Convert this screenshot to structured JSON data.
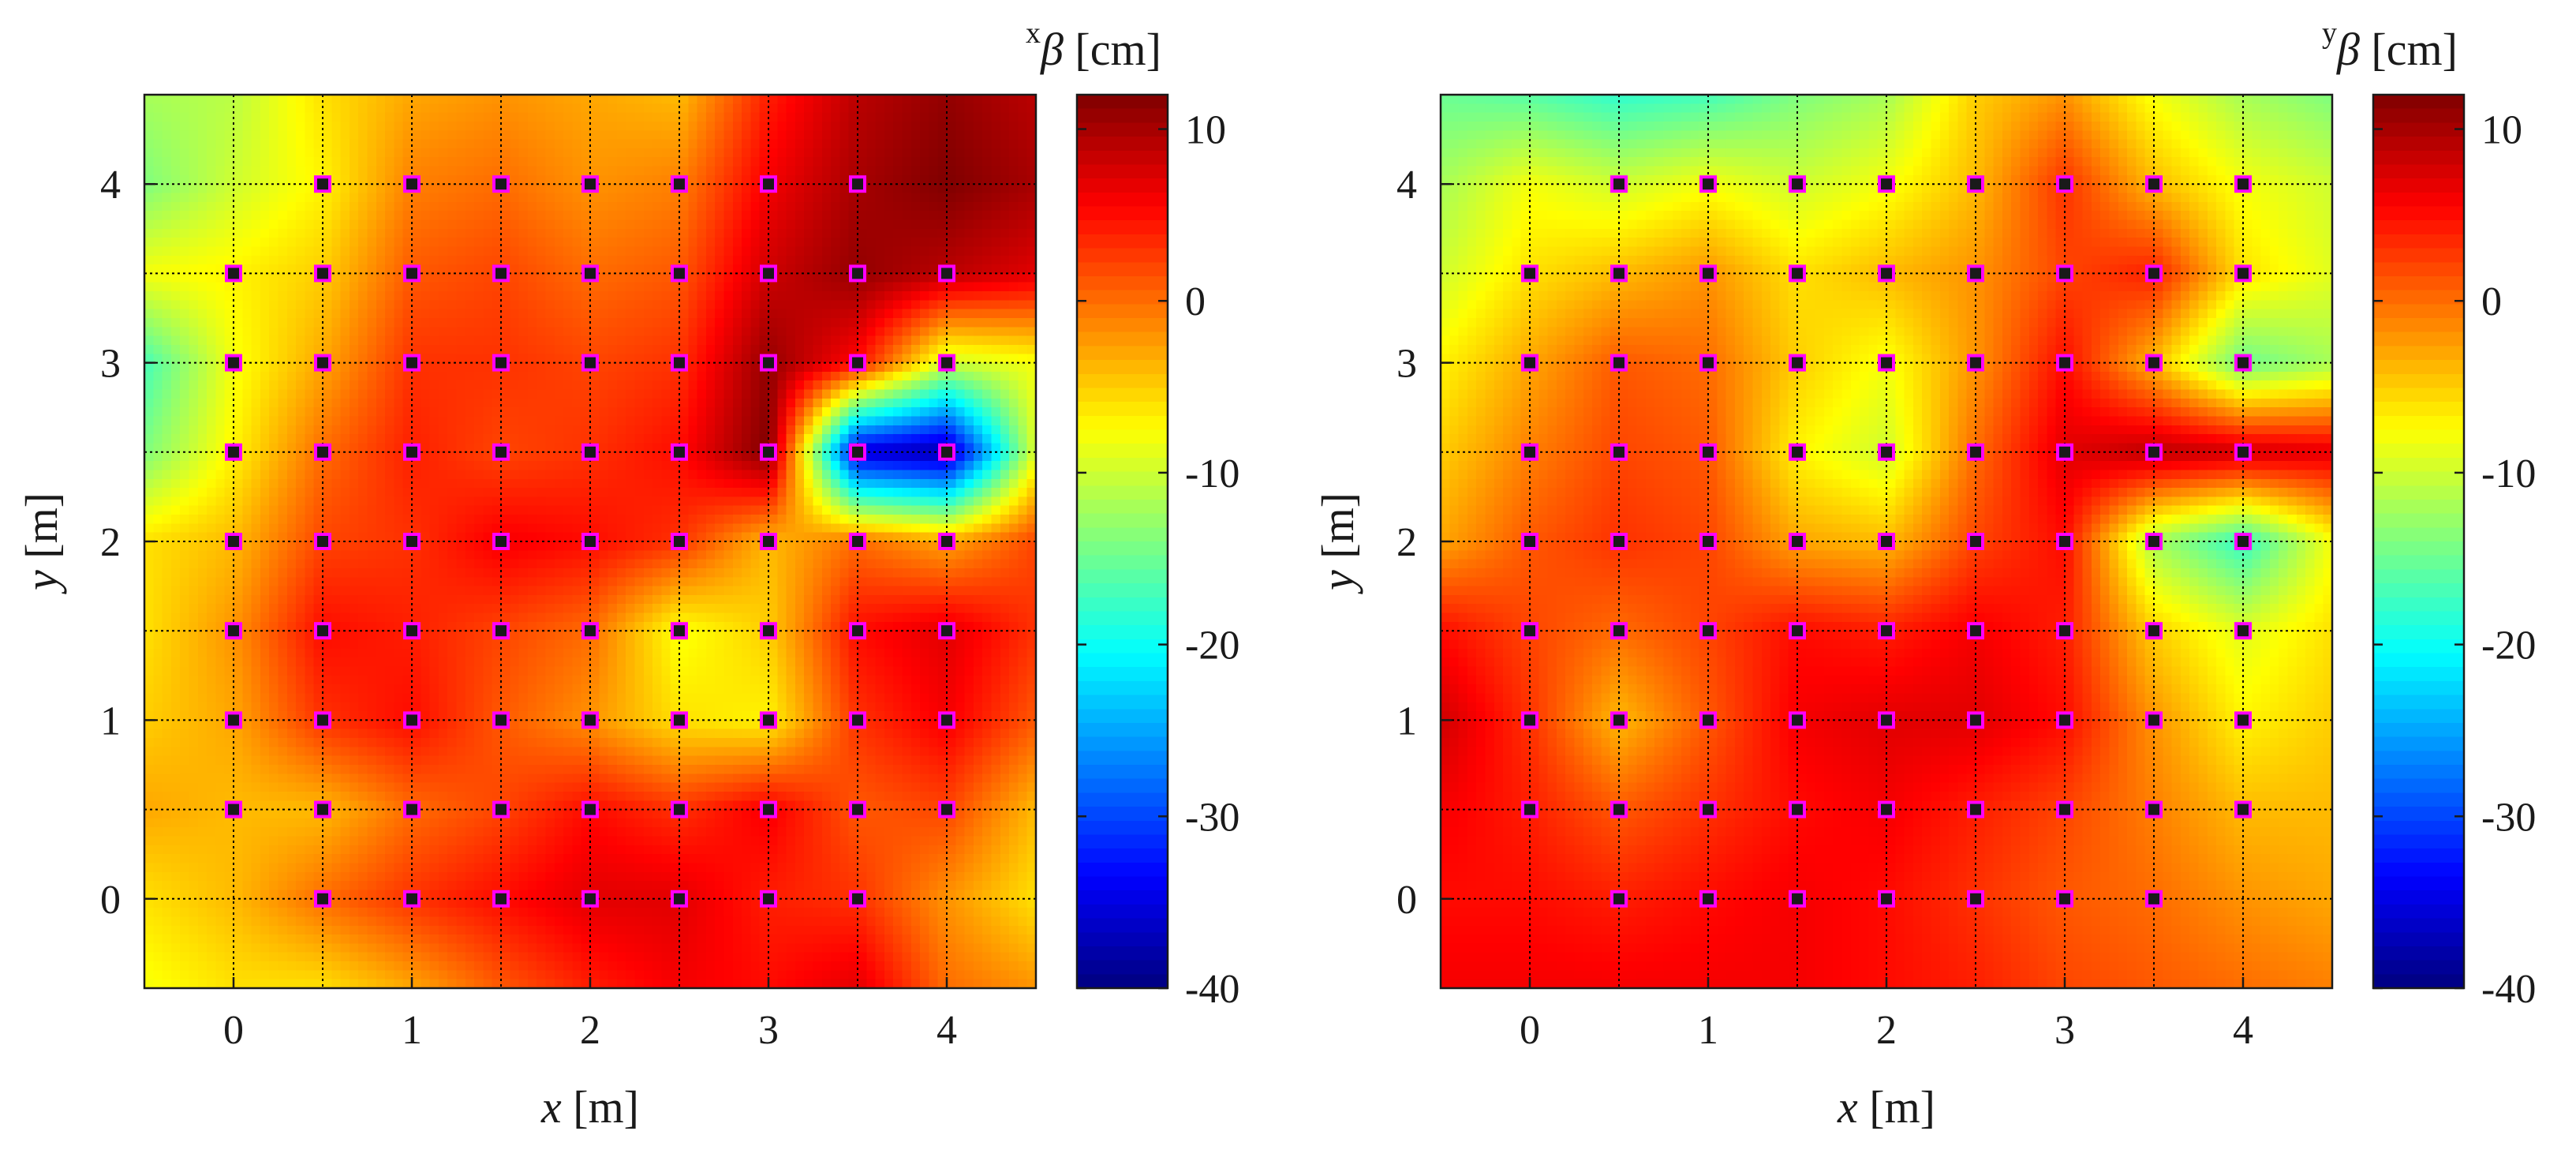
{
  "chart_data": [
    {
      "type": "heatmap",
      "title": "",
      "xlabel": "x [m]",
      "ylabel": "y [m]",
      "x_var": "x",
      "y_var": "y",
      "unit": "[m]",
      "xlim": [
        -0.5,
        4.5
      ],
      "ylim": [
        -0.5,
        4.5
      ],
      "xticks": [
        0,
        1,
        2,
        3,
        4
      ],
      "yticks": [
        0,
        1,
        2,
        3,
        4
      ],
      "grid": true,
      "colorbar": {
        "title_super": "x",
        "title_symbol": "β",
        "title_unit": "[cm]",
        "range": [
          -40,
          12
        ],
        "ticks": [
          10,
          0,
          -10,
          -20,
          -30,
          -40
        ],
        "colormap": "jet"
      },
      "colors": {
        "marker_edge": "#ff00ff",
        "marker_fill": "#1a1a1a",
        "grid": "#000000"
      },
      "field_values": [
        [
          -12,
          -11,
          -6,
          -3,
          -2,
          -3,
          -4,
          4,
          9,
          11,
          9
        ],
        [
          -14,
          -10,
          -7,
          -1,
          0,
          -2,
          -1,
          6,
          10,
          12,
          10
        ],
        [
          -8,
          -7,
          -5,
          1,
          2,
          0,
          1,
          8,
          11,
          9,
          7
        ],
        [
          -17,
          -8,
          -3,
          3,
          3,
          2,
          3,
          11,
          5,
          -10,
          -8
        ],
        [
          -14,
          -7,
          0,
          4,
          2,
          3,
          5,
          12,
          -36,
          -38,
          -9
        ],
        [
          -6,
          -4,
          2,
          3,
          6,
          5,
          3,
          -4,
          0,
          -3,
          2
        ],
        [
          -6,
          -2,
          5,
          4,
          2,
          0,
          -8,
          -5,
          5,
          7,
          3
        ],
        [
          -5,
          -3,
          3,
          5,
          1,
          -2,
          -6,
          -7,
          3,
          6,
          1
        ],
        [
          -3,
          -4,
          -4,
          0,
          2,
          5,
          3,
          6,
          1,
          2,
          -4
        ],
        [
          -6,
          -4,
          0,
          3,
          5,
          7,
          7,
          4,
          3,
          -2,
          -6
        ],
        [
          -8,
          -6,
          -6,
          -3,
          1,
          4,
          6,
          5,
          7,
          0,
          -2
        ]
      ],
      "markers": [
        [
          0.5,
          0
        ],
        [
          1,
          0
        ],
        [
          1.5,
          0
        ],
        [
          2,
          0
        ],
        [
          2.5,
          0
        ],
        [
          3,
          0
        ],
        [
          3.5,
          0
        ],
        [
          0,
          0.5
        ],
        [
          0.5,
          0.5
        ],
        [
          1,
          0.5
        ],
        [
          1.5,
          0.5
        ],
        [
          2,
          0.5
        ],
        [
          2.5,
          0.5
        ],
        [
          3,
          0.5
        ],
        [
          3.5,
          0.5
        ],
        [
          4,
          0.5
        ],
        [
          0,
          1
        ],
        [
          0.5,
          1
        ],
        [
          1,
          1
        ],
        [
          1.5,
          1
        ],
        [
          2,
          1
        ],
        [
          2.5,
          1
        ],
        [
          3,
          1
        ],
        [
          3.5,
          1
        ],
        [
          4,
          1
        ],
        [
          0,
          1.5
        ],
        [
          0.5,
          1.5
        ],
        [
          1,
          1.5
        ],
        [
          1.5,
          1.5
        ],
        [
          2,
          1.5
        ],
        [
          2.5,
          1.5
        ],
        [
          3,
          1.5
        ],
        [
          3.5,
          1.5
        ],
        [
          4,
          1.5
        ],
        [
          0,
          2
        ],
        [
          0.5,
          2
        ],
        [
          1,
          2
        ],
        [
          1.5,
          2
        ],
        [
          2,
          2
        ],
        [
          2.5,
          2
        ],
        [
          3,
          2
        ],
        [
          3.5,
          2
        ],
        [
          4,
          2
        ],
        [
          0,
          2.5
        ],
        [
          0.5,
          2.5
        ],
        [
          1,
          2.5
        ],
        [
          1.5,
          2.5
        ],
        [
          2,
          2.5
        ],
        [
          2.5,
          2.5
        ],
        [
          3,
          2.5
        ],
        [
          3.5,
          2.5
        ],
        [
          4,
          2.5
        ],
        [
          0,
          3
        ],
        [
          0.5,
          3
        ],
        [
          1,
          3
        ],
        [
          1.5,
          3
        ],
        [
          2,
          3
        ],
        [
          2.5,
          3
        ],
        [
          3,
          3
        ],
        [
          3.5,
          3
        ],
        [
          4,
          3
        ],
        [
          0,
          3.5
        ],
        [
          0.5,
          3.5
        ],
        [
          1,
          3.5
        ],
        [
          1.5,
          3.5
        ],
        [
          2,
          3.5
        ],
        [
          2.5,
          3.5
        ],
        [
          3,
          3.5
        ],
        [
          3.5,
          3.5
        ],
        [
          4,
          3.5
        ],
        [
          0.5,
          4
        ],
        [
          1,
          4
        ],
        [
          1.5,
          4
        ],
        [
          2,
          4
        ],
        [
          2.5,
          4
        ],
        [
          3,
          4
        ],
        [
          3.5,
          4
        ]
      ]
    },
    {
      "type": "heatmap",
      "title": "",
      "xlabel": "x [m]",
      "ylabel": "y [m]",
      "x_var": "x",
      "y_var": "y",
      "unit": "[m]",
      "xlim": [
        -0.5,
        4.5
      ],
      "ylim": [
        -0.5,
        4.5
      ],
      "xticks": [
        0,
        1,
        2,
        3,
        4
      ],
      "yticks": [
        0,
        1,
        2,
        3,
        4
      ],
      "grid": true,
      "colorbar": {
        "title_super": "y",
        "title_symbol": "β",
        "title_unit": "[cm]",
        "range": [
          -40,
          12
        ],
        "ticks": [
          10,
          0,
          -10,
          -20,
          -30,
          -40
        ],
        "colormap": "jet"
      },
      "colors": {
        "marker_edge": "#ff00ff",
        "marker_fill": "#1a1a1a",
        "grid": "#000000"
      },
      "field_values": [
        [
          -15,
          -16,
          -18,
          -17,
          -14,
          -12,
          -5,
          -2,
          -8,
          -12,
          -14
        ],
        [
          -12,
          -8,
          -10,
          -8,
          -10,
          -8,
          -4,
          3,
          -4,
          -8,
          -10
        ],
        [
          -10,
          -6,
          -4,
          -2,
          -6,
          -4,
          -2,
          2,
          4,
          -6,
          -9
        ],
        [
          -7,
          -3,
          1,
          0,
          -5,
          -8,
          -2,
          5,
          -4,
          -15,
          -12
        ],
        [
          -5,
          -1,
          2,
          1,
          -7,
          -10,
          0,
          7,
          9,
          8,
          7
        ],
        [
          -3,
          1,
          3,
          2,
          -3,
          -4,
          2,
          5,
          -12,
          -18,
          -8
        ],
        [
          5,
          2,
          0,
          2,
          5,
          4,
          6,
          4,
          -5,
          -9,
          -6
        ],
        [
          8,
          3,
          -4,
          1,
          6,
          7,
          7,
          5,
          -2,
          -7,
          -5
        ],
        [
          6,
          4,
          1,
          3,
          5,
          6,
          4,
          2,
          -1,
          -4,
          -4
        ],
        [
          5,
          5,
          4,
          5,
          6,
          5,
          3,
          1,
          0,
          -2,
          -3
        ],
        [
          6,
          6,
          6,
          6,
          6,
          5,
          4,
          2,
          1,
          0,
          -1
        ]
      ],
      "markers": [
        [
          0.5,
          0
        ],
        [
          1,
          0
        ],
        [
          1.5,
          0
        ],
        [
          2,
          0
        ],
        [
          2.5,
          0
        ],
        [
          3,
          0
        ],
        [
          3.5,
          0
        ],
        [
          0,
          0.5
        ],
        [
          0.5,
          0.5
        ],
        [
          1,
          0.5
        ],
        [
          1.5,
          0.5
        ],
        [
          2,
          0.5
        ],
        [
          2.5,
          0.5
        ],
        [
          3,
          0.5
        ],
        [
          3.5,
          0.5
        ],
        [
          4,
          0.5
        ],
        [
          0,
          1
        ],
        [
          0.5,
          1
        ],
        [
          1,
          1
        ],
        [
          1.5,
          1
        ],
        [
          2,
          1
        ],
        [
          2.5,
          1
        ],
        [
          3,
          1
        ],
        [
          3.5,
          1
        ],
        [
          4,
          1
        ],
        [
          0,
          1.5
        ],
        [
          0.5,
          1.5
        ],
        [
          1,
          1.5
        ],
        [
          1.5,
          1.5
        ],
        [
          2,
          1.5
        ],
        [
          2.5,
          1.5
        ],
        [
          3,
          1.5
        ],
        [
          3.5,
          1.5
        ],
        [
          4,
          1.5
        ],
        [
          0,
          2
        ],
        [
          0.5,
          2
        ],
        [
          1,
          2
        ],
        [
          1.5,
          2
        ],
        [
          2,
          2
        ],
        [
          2.5,
          2
        ],
        [
          3,
          2
        ],
        [
          3.5,
          2
        ],
        [
          4,
          2
        ],
        [
          0,
          2.5
        ],
        [
          0.5,
          2.5
        ],
        [
          1,
          2.5
        ],
        [
          1.5,
          2.5
        ],
        [
          2,
          2.5
        ],
        [
          2.5,
          2.5
        ],
        [
          3,
          2.5
        ],
        [
          3.5,
          2.5
        ],
        [
          4,
          2.5
        ],
        [
          0,
          3
        ],
        [
          0.5,
          3
        ],
        [
          1,
          3
        ],
        [
          1.5,
          3
        ],
        [
          2,
          3
        ],
        [
          2.5,
          3
        ],
        [
          3,
          3
        ],
        [
          3.5,
          3
        ],
        [
          4,
          3
        ],
        [
          0,
          3.5
        ],
        [
          0.5,
          3.5
        ],
        [
          1,
          3.5
        ],
        [
          1.5,
          3.5
        ],
        [
          2,
          3.5
        ],
        [
          2.5,
          3.5
        ],
        [
          3,
          3.5
        ],
        [
          3.5,
          3.5
        ],
        [
          4,
          3.5
        ],
        [
          0.5,
          4
        ],
        [
          1,
          4
        ],
        [
          1.5,
          4
        ],
        [
          2,
          4
        ],
        [
          2.5,
          4
        ],
        [
          3,
          4
        ],
        [
          3.5,
          4
        ],
        [
          4,
          4
        ]
      ]
    }
  ]
}
